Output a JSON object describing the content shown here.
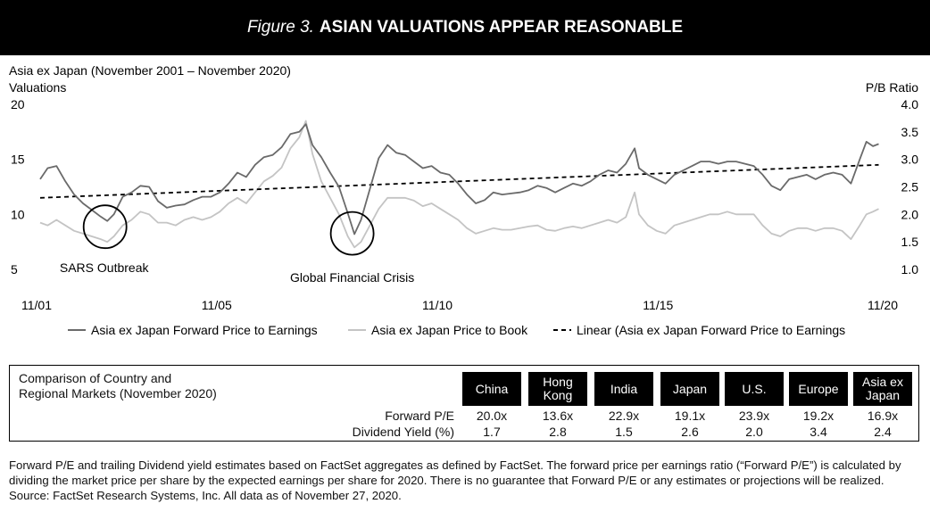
{
  "figure": {
    "label": "Figure 3.",
    "title": "ASIAN VALUATIONS APPEAR REASONABLE"
  },
  "chart_data": {
    "type": "line",
    "title": "Asia ex Japan (November 2001 – November 2020)",
    "ylabel_left": "Valuations",
    "ylabel_right": "P/B Ratio",
    "ylim_left": [
      5,
      20
    ],
    "ylim_right": [
      1.0,
      4.0
    ],
    "yticks_left": [
      "20",
      "15",
      "10",
      "5"
    ],
    "yticks_right": [
      "4.0",
      "3.5",
      "3.0",
      "2.5",
      "2.0",
      "1.5",
      "1.0"
    ],
    "xlim": [
      2001.83,
      2020.9
    ],
    "xticks": [
      {
        "label": "11/01",
        "x": 2001.83
      },
      {
        "label": "11/05",
        "x": 2005.83
      },
      {
        "label": "11/10",
        "x": 2010.83
      },
      {
        "label": "11/15",
        "x": 2015.83
      },
      {
        "label": "11/20",
        "x": 2020.83
      }
    ],
    "grid": false,
    "legend_position": "bottom",
    "series": [
      {
        "name": "Asia ex Japan Forward Price to Earnings",
        "axis": "left",
        "color": "#6a6a6a",
        "points": [
          [
            2001.83,
            13.2
          ],
          [
            2002.0,
            14.2
          ],
          [
            2002.2,
            14.4
          ],
          [
            2002.4,
            13.0
          ],
          [
            2002.6,
            11.8
          ],
          [
            2002.8,
            11.0
          ],
          [
            2003.0,
            10.4
          ],
          [
            2003.2,
            9.8
          ],
          [
            2003.35,
            9.4
          ],
          [
            2003.5,
            10.0
          ],
          [
            2003.7,
            11.6
          ],
          [
            2003.9,
            12.0
          ],
          [
            2004.1,
            12.6
          ],
          [
            2004.3,
            12.5
          ],
          [
            2004.5,
            11.2
          ],
          [
            2004.7,
            10.6
          ],
          [
            2004.9,
            10.8
          ],
          [
            2005.1,
            10.9
          ],
          [
            2005.3,
            11.3
          ],
          [
            2005.5,
            11.6
          ],
          [
            2005.7,
            11.6
          ],
          [
            2005.9,
            12.0
          ],
          [
            2006.1,
            12.8
          ],
          [
            2006.3,
            13.8
          ],
          [
            2006.5,
            13.4
          ],
          [
            2006.7,
            14.5
          ],
          [
            2006.9,
            15.2
          ],
          [
            2007.1,
            15.4
          ],
          [
            2007.3,
            16.1
          ],
          [
            2007.5,
            17.3
          ],
          [
            2007.7,
            17.5
          ],
          [
            2007.85,
            18.2
          ],
          [
            2008.0,
            16.3
          ],
          [
            2008.2,
            15.2
          ],
          [
            2008.4,
            13.8
          ],
          [
            2008.6,
            12.5
          ],
          [
            2008.8,
            10.1
          ],
          [
            2008.95,
            8.2
          ],
          [
            2009.1,
            9.5
          ],
          [
            2009.3,
            12.3
          ],
          [
            2009.5,
            15.1
          ],
          [
            2009.7,
            16.3
          ],
          [
            2009.9,
            15.6
          ],
          [
            2010.1,
            15.4
          ],
          [
            2010.3,
            14.8
          ],
          [
            2010.5,
            14.2
          ],
          [
            2010.7,
            14.4
          ],
          [
            2010.9,
            13.8
          ],
          [
            2011.1,
            13.6
          ],
          [
            2011.3,
            12.8
          ],
          [
            2011.5,
            11.8
          ],
          [
            2011.7,
            11.0
          ],
          [
            2011.9,
            11.3
          ],
          [
            2012.1,
            12.0
          ],
          [
            2012.3,
            11.8
          ],
          [
            2012.5,
            11.9
          ],
          [
            2012.7,
            12.0
          ],
          [
            2012.9,
            12.2
          ],
          [
            2013.1,
            12.6
          ],
          [
            2013.3,
            12.4
          ],
          [
            2013.5,
            12.0
          ],
          [
            2013.7,
            12.4
          ],
          [
            2013.9,
            12.8
          ],
          [
            2014.1,
            12.6
          ],
          [
            2014.3,
            13.0
          ],
          [
            2014.5,
            13.6
          ],
          [
            2014.7,
            14.0
          ],
          [
            2014.9,
            13.8
          ],
          [
            2015.1,
            14.6
          ],
          [
            2015.3,
            16.0
          ],
          [
            2015.4,
            14.2
          ],
          [
            2015.6,
            13.6
          ],
          [
            2015.8,
            13.2
          ],
          [
            2016.0,
            12.8
          ],
          [
            2016.2,
            13.6
          ],
          [
            2016.4,
            14.0
          ],
          [
            2016.6,
            14.4
          ],
          [
            2016.8,
            14.8
          ],
          [
            2017.0,
            14.8
          ],
          [
            2017.2,
            14.6
          ],
          [
            2017.4,
            14.8
          ],
          [
            2017.6,
            14.8
          ],
          [
            2017.8,
            14.6
          ],
          [
            2018.0,
            14.4
          ],
          [
            2018.2,
            13.6
          ],
          [
            2018.4,
            12.6
          ],
          [
            2018.6,
            12.2
          ],
          [
            2018.8,
            13.2
          ],
          [
            2019.0,
            13.4
          ],
          [
            2019.2,
            13.6
          ],
          [
            2019.4,
            13.2
          ],
          [
            2019.6,
            13.6
          ],
          [
            2019.8,
            13.8
          ],
          [
            2020.0,
            13.6
          ],
          [
            2020.2,
            12.8
          ],
          [
            2020.4,
            15.0
          ],
          [
            2020.55,
            16.6
          ],
          [
            2020.7,
            16.2
          ],
          [
            2020.83,
            16.4
          ]
        ]
      },
      {
        "name": "Asia ex Japan Price to Book",
        "axis": "right",
        "color": "#c4c4c4",
        "points": [
          [
            2001.83,
            1.85
          ],
          [
            2002.0,
            1.8
          ],
          [
            2002.2,
            1.9
          ],
          [
            2002.4,
            1.8
          ],
          [
            2002.6,
            1.7
          ],
          [
            2002.8,
            1.65
          ],
          [
            2003.0,
            1.6
          ],
          [
            2003.2,
            1.55
          ],
          [
            2003.35,
            1.5
          ],
          [
            2003.5,
            1.6
          ],
          [
            2003.7,
            1.8
          ],
          [
            2003.9,
            1.9
          ],
          [
            2004.1,
            2.05
          ],
          [
            2004.3,
            2.0
          ],
          [
            2004.5,
            1.85
          ],
          [
            2004.7,
            1.85
          ],
          [
            2004.9,
            1.8
          ],
          [
            2005.1,
            1.9
          ],
          [
            2005.3,
            1.95
          ],
          [
            2005.5,
            1.9
          ],
          [
            2005.7,
            1.95
          ],
          [
            2005.9,
            2.05
          ],
          [
            2006.1,
            2.2
          ],
          [
            2006.3,
            2.3
          ],
          [
            2006.5,
            2.2
          ],
          [
            2006.7,
            2.4
          ],
          [
            2006.9,
            2.6
          ],
          [
            2007.1,
            2.7
          ],
          [
            2007.3,
            2.85
          ],
          [
            2007.5,
            3.2
          ],
          [
            2007.7,
            3.4
          ],
          [
            2007.85,
            3.7
          ],
          [
            2008.0,
            3.1
          ],
          [
            2008.2,
            2.6
          ],
          [
            2008.4,
            2.3
          ],
          [
            2008.6,
            2.0
          ],
          [
            2008.8,
            1.6
          ],
          [
            2008.95,
            1.4
          ],
          [
            2009.1,
            1.5
          ],
          [
            2009.3,
            1.8
          ],
          [
            2009.5,
            2.1
          ],
          [
            2009.7,
            2.3
          ],
          [
            2009.9,
            2.3
          ],
          [
            2010.1,
            2.3
          ],
          [
            2010.3,
            2.25
          ],
          [
            2010.5,
            2.15
          ],
          [
            2010.7,
            2.2
          ],
          [
            2010.9,
            2.1
          ],
          [
            2011.1,
            2.0
          ],
          [
            2011.3,
            1.9
          ],
          [
            2011.5,
            1.75
          ],
          [
            2011.7,
            1.65
          ],
          [
            2011.9,
            1.7
          ],
          [
            2012.1,
            1.75
          ],
          [
            2012.3,
            1.72
          ],
          [
            2012.5,
            1.72
          ],
          [
            2012.7,
            1.75
          ],
          [
            2012.9,
            1.78
          ],
          [
            2013.1,
            1.8
          ],
          [
            2013.3,
            1.72
          ],
          [
            2013.5,
            1.7
          ],
          [
            2013.7,
            1.75
          ],
          [
            2013.9,
            1.78
          ],
          [
            2014.1,
            1.75
          ],
          [
            2014.3,
            1.8
          ],
          [
            2014.5,
            1.85
          ],
          [
            2014.7,
            1.9
          ],
          [
            2014.9,
            1.85
          ],
          [
            2015.1,
            1.95
          ],
          [
            2015.3,
            2.4
          ],
          [
            2015.4,
            2.0
          ],
          [
            2015.6,
            1.8
          ],
          [
            2015.8,
            1.7
          ],
          [
            2016.0,
            1.65
          ],
          [
            2016.2,
            1.8
          ],
          [
            2016.4,
            1.85
          ],
          [
            2016.6,
            1.9
          ],
          [
            2016.8,
            1.95
          ],
          [
            2017.0,
            2.0
          ],
          [
            2017.2,
            2.0
          ],
          [
            2017.4,
            2.05
          ],
          [
            2017.6,
            2.0
          ],
          [
            2017.8,
            2.0
          ],
          [
            2018.0,
            2.0
          ],
          [
            2018.2,
            1.8
          ],
          [
            2018.4,
            1.65
          ],
          [
            2018.6,
            1.6
          ],
          [
            2018.8,
            1.7
          ],
          [
            2019.0,
            1.75
          ],
          [
            2019.2,
            1.75
          ],
          [
            2019.4,
            1.7
          ],
          [
            2019.6,
            1.75
          ],
          [
            2019.8,
            1.75
          ],
          [
            2020.0,
            1.7
          ],
          [
            2020.2,
            1.55
          ],
          [
            2020.4,
            1.8
          ],
          [
            2020.55,
            2.0
          ],
          [
            2020.7,
            2.05
          ],
          [
            2020.83,
            2.1
          ]
        ]
      },
      {
        "name": "Linear (Asia ex Japan Forward Price to Earnings",
        "axis": "left",
        "color": "#000000",
        "style": "dashed",
        "points": [
          [
            2001.83,
            11.5
          ],
          [
            2020.83,
            14.5
          ]
        ]
      }
    ],
    "annotations": [
      {
        "text": "SARS Outbreak",
        "x": 2003.3,
        "y": 9.2
      },
      {
        "text": "Global Financial Crisis",
        "x": 2008.9,
        "y": 8.6
      }
    ]
  },
  "table": {
    "caption_line1": "Comparison of Country and",
    "caption_line2": "Regional Markets (November 2020)",
    "columns": [
      {
        "line1": "China",
        "line2": ""
      },
      {
        "line1": "Hong",
        "line2": "Kong"
      },
      {
        "line1": "India",
        "line2": ""
      },
      {
        "line1": "Japan",
        "line2": ""
      },
      {
        "line1": "U.S.",
        "line2": ""
      },
      {
        "line1": "Europe",
        "line2": ""
      },
      {
        "line1": "Asia ex",
        "line2": "Japan"
      }
    ],
    "rows": [
      {
        "label": "Forward P/E",
        "values": [
          "20.0x",
          "13.6x",
          "22.9x",
          "19.1x",
          "23.9x",
          "19.2x",
          "16.9x"
        ]
      },
      {
        "label": "Dividend Yield (%)",
        "values": [
          "1.7",
          "2.8",
          "1.5",
          "2.6",
          "2.0",
          "3.4",
          "2.4"
        ]
      }
    ]
  },
  "footnote": "Forward P/E and trailing Dividend yield estimates based on FactSet aggregates as defined by FactSet. The forward price per earnings ratio (“Forward P/E”) is calculated by dividing the market price per share by the expected earnings per share for 2020. There is no guarantee that Forward P/E or any estimates or projections will be realized. Source: FactSet Research Systems, Inc. All data as of November 27, 2020."
}
